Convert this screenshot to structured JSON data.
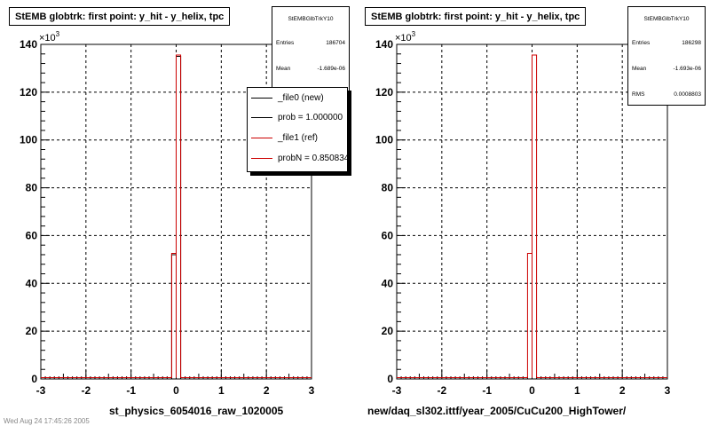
{
  "panels": [
    {
      "title": "StEMB globtrk: first point: y_hit - y_helix, tpc",
      "xlabel": "st_physics_6054016_raw_1020005",
      "stats": {
        "name": "StEMBGlbTrkY10",
        "rows": [
          {
            "label": "Entries",
            "value": "186704"
          },
          {
            "label": "Mean",
            "value": "-1.689e-06"
          }
        ]
      },
      "legend": [
        {
          "label": "_file0 (new)",
          "color": "#000000"
        },
        {
          "label": "prob = 1.000000",
          "color": "#000000"
        },
        {
          "label": "_file1 (ref)",
          "color": "#cc0000"
        },
        {
          "label": "probN = 0.850834",
          "color": "#cc0000"
        }
      ]
    },
    {
      "title": "StEMB globtrk: first point: y_hit - y_helix, tpc",
      "xlabel": "new/daq_sl302.ittf/year_2005/CuCu200_HighTower/",
      "stats": {
        "name": "StEMBGlbTrkY10",
        "rows": [
          {
            "label": "Entries",
            "value": "186298"
          },
          {
            "label": "Mean",
            "value": "-1.693e-06"
          },
          {
            "label": "RMS",
            "value": "0.0008803"
          }
        ]
      },
      "legend": []
    }
  ],
  "footer": "Wed Aug 24 17:45:26 2005",
  "chart_data": [
    {
      "type": "histogram",
      "title": "StEMB globtrk: first point: y_hit - y_helix, tpc",
      "xlabel": "st_physics_6054016_raw_1020005",
      "ylabel": "",
      "y_multiplier": "×10^3",
      "xlim": [
        -3,
        3
      ],
      "ylim": [
        0,
        140
      ],
      "x_ticks": [
        -3,
        -2,
        -1,
        0,
        1,
        2,
        3
      ],
      "y_ticks": [
        0,
        20,
        40,
        60,
        80,
        100,
        120,
        140
      ],
      "grid": true,
      "bin_width": 0.1,
      "series": [
        {
          "name": "_file0 (new)",
          "color": "#000000",
          "bins": [
            {
              "x0": -0.1,
              "x1": 0.0,
              "y": 52
            },
            {
              "x0": 0.0,
              "x1": 0.1,
              "y": 135
            }
          ]
        },
        {
          "name": "_file1 (ref)",
          "color": "#cc0000",
          "bins": [
            {
              "x0": -0.1,
              "x1": 0.0,
              "y": 52
            },
            {
              "x0": 0.0,
              "x1": 0.1,
              "y": 135
            }
          ]
        }
      ]
    },
    {
      "type": "histogram",
      "title": "StEMB globtrk: first point: y_hit - y_helix, tpc",
      "xlabel": "new/daq_sl302.ittf/year_2005/CuCu200_HighTower/",
      "ylabel": "",
      "y_multiplier": "×10^3",
      "xlim": [
        -3,
        3
      ],
      "ylim": [
        0,
        140
      ],
      "x_ticks": [
        -3,
        -2,
        -1,
        0,
        1,
        2,
        3
      ],
      "y_ticks": [
        0,
        20,
        40,
        60,
        80,
        100,
        120,
        140
      ],
      "grid": true,
      "bin_width": 0.1,
      "series": [
        {
          "name": "_file1 (ref)",
          "color": "#cc0000",
          "bins": [
            {
              "x0": -0.1,
              "x1": 0.0,
              "y": 52
            },
            {
              "x0": 0.0,
              "x1": 0.1,
              "y": 135
            }
          ]
        }
      ]
    }
  ]
}
